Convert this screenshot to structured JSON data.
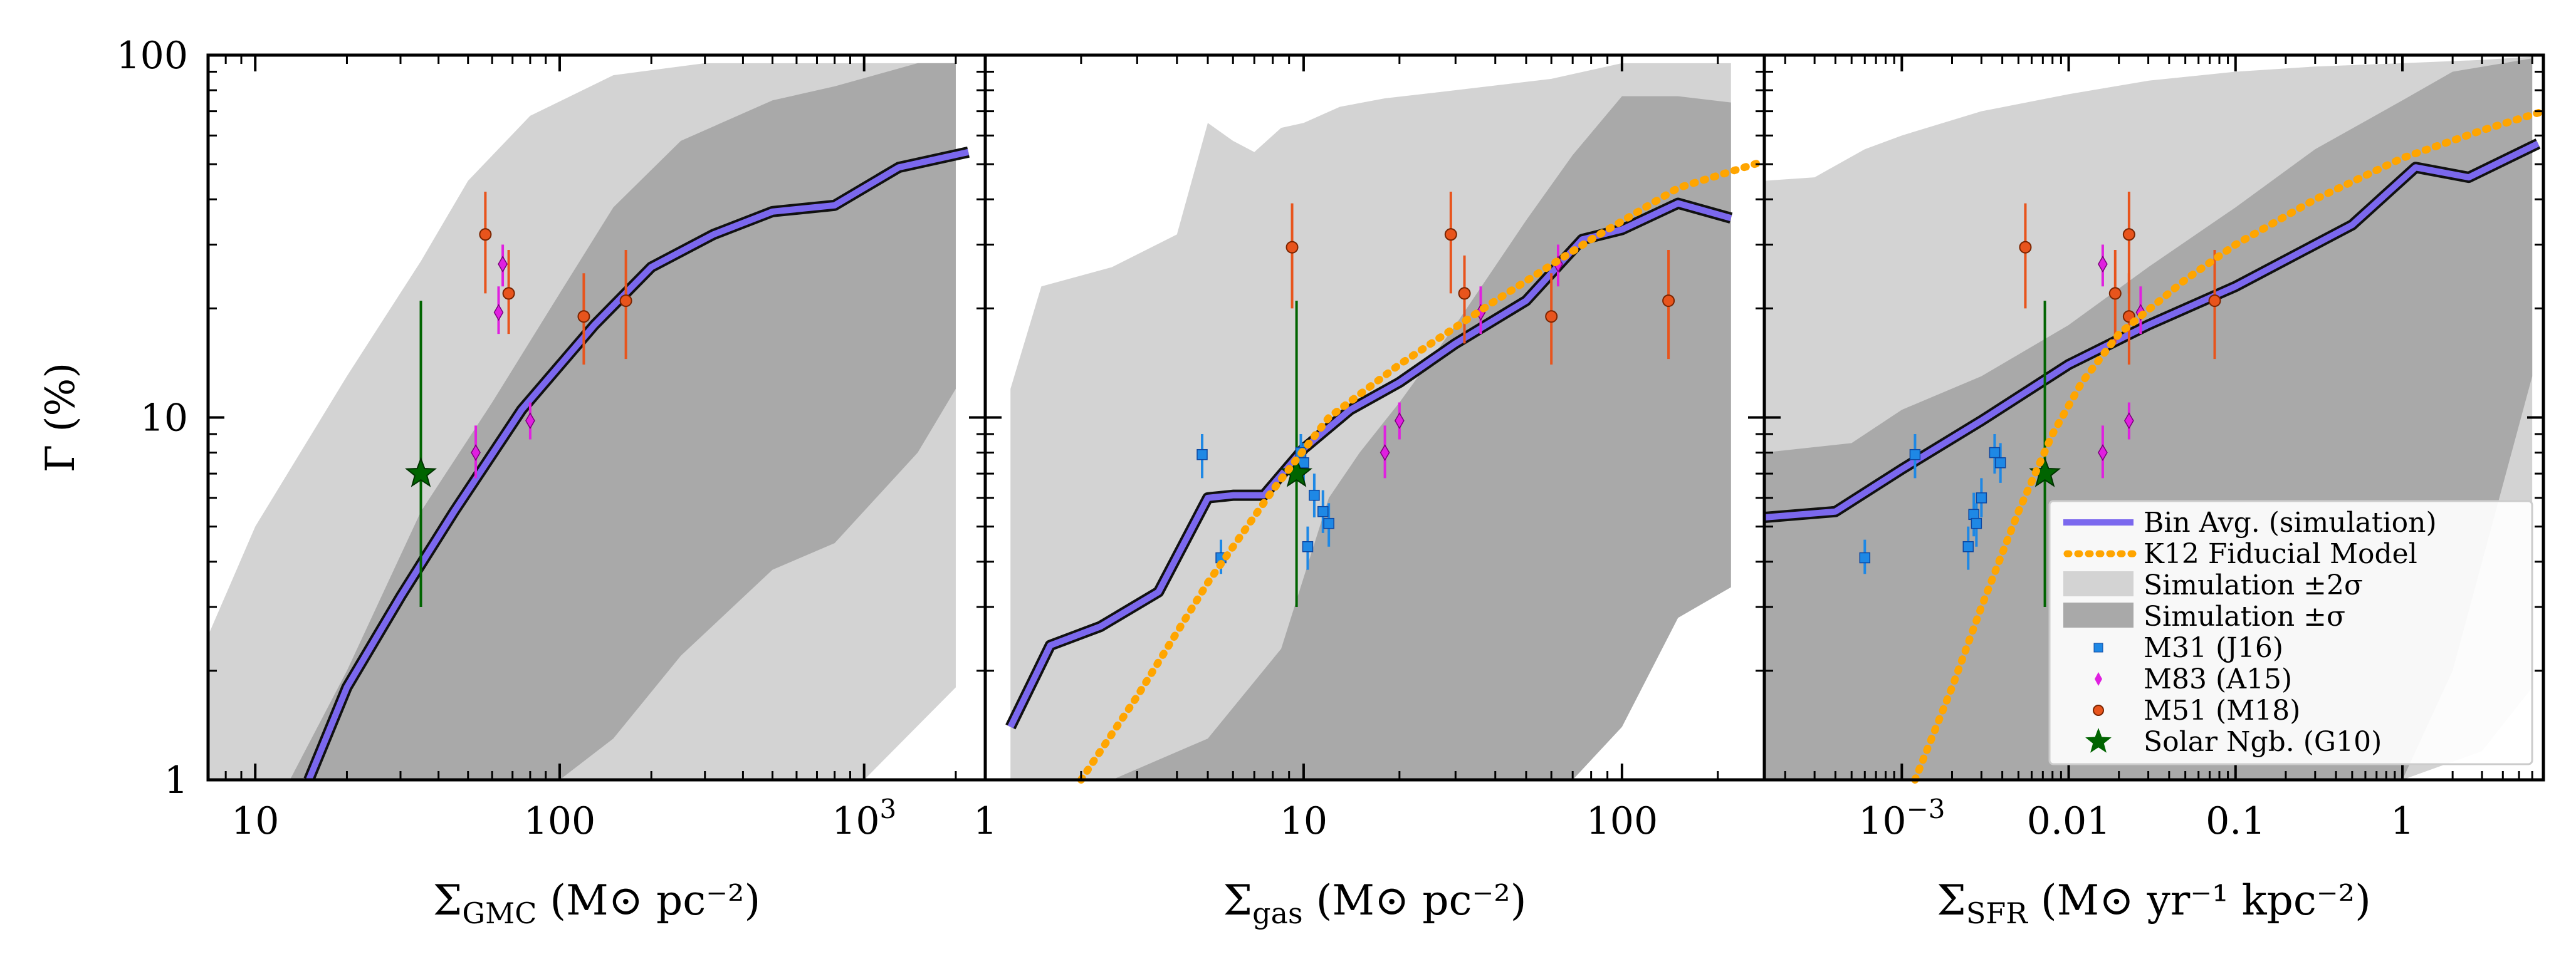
{
  "figure": {
    "ylabel": "Γ (%)",
    "y_ticks": [
      {
        "value": 1,
        "label": "1"
      },
      {
        "value": 10,
        "label": "10"
      },
      {
        "value": 100,
        "label": "100"
      }
    ],
    "legend": {
      "location": "lower-right of right panel",
      "entries": [
        {
          "key": "bin_avg",
          "label": "Bin Avg. (simulation)",
          "marker": "line"
        },
        {
          "key": "k12",
          "label": "K12 Fiducial Model",
          "marker": "dotted"
        },
        {
          "key": "sim2",
          "label": "Simulation ±2σ",
          "marker": "patch"
        },
        {
          "key": "sim1",
          "label": "Simulation ±σ",
          "marker": "patch"
        },
        {
          "key": "m31",
          "label": "M31 (J16)",
          "marker": "square"
        },
        {
          "key": "m83",
          "label": "M83 (A15)",
          "marker": "diamond"
        },
        {
          "key": "m51",
          "label": "M51 (M18)",
          "marker": "circle"
        },
        {
          "key": "solar",
          "label": "Solar Ngb. (G10)",
          "marker": "star"
        }
      ]
    }
  },
  "colors": {
    "bin_avg": "#7b68ee",
    "bin_avg_edge": "#111111",
    "k12": "#ffa500",
    "sim2": "#d3d3d3",
    "sim1": "#a9a9a9",
    "m31": "#1e88e5",
    "m83": "#e020e0",
    "m51": "#e8541c",
    "solar": "#006400"
  },
  "chart_data": [
    {
      "type": "line",
      "panel": "GMC",
      "xlabel": "Σ_GMC (M⊙ pc⁻²)",
      "xscale": "log",
      "xlim": [
        7,
        2500
      ],
      "ylim": [
        1,
        100
      ],
      "x_ticks": [
        {
          "value": 10,
          "label": "10"
        },
        {
          "value": 100,
          "label": "100"
        },
        {
          "value": 1000,
          "label": "10^3"
        }
      ],
      "band2": {
        "x": [
          7,
          10,
          20,
          35,
          50,
          80,
          150,
          300,
          600,
          1000,
          2000
        ],
        "lower": [
          1,
          1,
          1,
          1,
          1,
          1,
          1,
          1,
          1,
          1,
          1.8
        ],
        "upper": [
          2.5,
          5,
          13,
          27,
          45,
          68,
          88,
          95,
          95,
          95,
          95
        ]
      },
      "band1": {
        "x": [
          13,
          20,
          35,
          60,
          100,
          150,
          250,
          500,
          800,
          1500,
          2000
        ],
        "lower": [
          1,
          1,
          1,
          1,
          1,
          1.3,
          2.2,
          3.8,
          4.5,
          8,
          12
        ],
        "upper": [
          1,
          2,
          5.5,
          11,
          22,
          38,
          58,
          75,
          82,
          95,
          95
        ]
      },
      "bin_avg": {
        "x": [
          15,
          20,
          30,
          45,
          75,
          130,
          200,
          320,
          500,
          800,
          1300,
          2200
        ],
        "y": [
          1,
          1.8,
          3.2,
          5.5,
          10.5,
          18,
          26,
          32,
          37,
          38.5,
          49,
          54
        ]
      },
      "m51": [
        {
          "x": 57,
          "y": 32,
          "lo": 22,
          "hi": 42
        },
        {
          "x": 68,
          "y": 22,
          "lo": 17,
          "hi": 29
        },
        {
          "x": 120,
          "y": 19,
          "lo": 14,
          "hi": 25
        },
        {
          "x": 165,
          "y": 21,
          "lo": 14.5,
          "hi": 29
        }
      ],
      "m83": [
        {
          "x": 53,
          "y": 8,
          "lo": 6.8,
          "hi": 9.5
        },
        {
          "x": 63,
          "y": 19.5,
          "lo": 17,
          "hi": 23
        },
        {
          "x": 65,
          "y": 26.5,
          "lo": 23,
          "hi": 30
        },
        {
          "x": 80,
          "y": 9.8,
          "lo": 8.7,
          "hi": 11
        }
      ],
      "solar": [
        {
          "x": 35,
          "y": 7,
          "lo": 3,
          "hi": 21
        }
      ]
    },
    {
      "type": "line",
      "panel": "gas",
      "xlabel": "Σ_gas (M⊙ pc⁻²)",
      "xscale": "log",
      "xlim": [
        1,
        280
      ],
      "ylim": [
        1,
        100
      ],
      "x_ticks": [
        {
          "value": 1,
          "label": "1"
        },
        {
          "value": 10,
          "label": "10"
        },
        {
          "value": 100,
          "label": "100"
        }
      ],
      "band2": {
        "x": [
          1.2,
          1.5,
          2.5,
          4,
          5,
          6,
          7,
          8.5,
          10,
          13,
          18,
          30,
          60,
          100,
          150,
          220
        ],
        "lower": [
          1,
          1,
          1,
          1,
          1,
          1,
          1,
          1,
          1,
          1,
          1,
          1,
          1,
          1.8,
          2.8,
          3.8
        ],
        "upper": [
          12,
          23,
          26,
          32,
          65,
          58,
          54,
          63,
          65,
          72,
          76,
          80,
          86,
          95,
          95,
          95
        ]
      },
      "band1": {
        "x": [
          2.5,
          5,
          8.5,
          12,
          15,
          20,
          30,
          50,
          70,
          100,
          150,
          220
        ],
        "lower": [
          1,
          1,
          1,
          1,
          1,
          1,
          1,
          1,
          1,
          1.4,
          2.8,
          3.4
        ],
        "upper": [
          1,
          1.3,
          2.3,
          6,
          8,
          11,
          18,
          35,
          53,
          77,
          77,
          74
        ]
      },
      "bin_avg": {
        "x": [
          1.2,
          1.6,
          2.3,
          3.5,
          5,
          6,
          7.5,
          10,
          14,
          20,
          30,
          50,
          75,
          100,
          150,
          220
        ],
        "y": [
          1.4,
          2.35,
          2.65,
          3.3,
          6,
          6.1,
          6.1,
          8.2,
          10.5,
          12.5,
          16,
          21,
          31,
          33,
          39,
          35.5
        ]
      },
      "k12": {
        "x": [
          2,
          3,
          5,
          8,
          12,
          20,
          40,
          80,
          150,
          280
        ],
        "y": [
          1,
          1.7,
          3.5,
          6.3,
          10,
          14,
          21,
          31,
          43,
          51
        ]
      },
      "m31": [
        {
          "x": 4.8,
          "y": 7.9,
          "lo": 6.8,
          "hi": 9
        },
        {
          "x": 5.5,
          "y": 4.1,
          "lo": 3.7,
          "hi": 4.6
        },
        {
          "x": 9.8,
          "y": 8,
          "lo": 7,
          "hi": 9
        },
        {
          "x": 10,
          "y": 7.5,
          "lo": 6.6,
          "hi": 8.5
        },
        {
          "x": 10.3,
          "y": 4.4,
          "lo": 3.8,
          "hi": 5
        },
        {
          "x": 10.8,
          "y": 6.1,
          "lo": 5.3,
          "hi": 7
        },
        {
          "x": 11.5,
          "y": 5.5,
          "lo": 4.8,
          "hi": 6.3
        },
        {
          "x": 12,
          "y": 5.1,
          "lo": 4.4,
          "hi": 5.8
        }
      ],
      "m83": [
        {
          "x": 18,
          "y": 8,
          "lo": 6.8,
          "hi": 9.5
        },
        {
          "x": 20,
          "y": 9.8,
          "lo": 8.7,
          "hi": 11
        },
        {
          "x": 36,
          "y": 19.5,
          "lo": 17,
          "hi": 23
        },
        {
          "x": 63,
          "y": 26.5,
          "lo": 23,
          "hi": 30
        }
      ],
      "m51": [
        {
          "x": 9.2,
          "y": 29.5,
          "lo": 20,
          "hi": 39
        },
        {
          "x": 29,
          "y": 32,
          "lo": 22,
          "hi": 42
        },
        {
          "x": 32,
          "y": 22,
          "lo": 16,
          "hi": 28
        },
        {
          "x": 60,
          "y": 19,
          "lo": 14,
          "hi": 25
        },
        {
          "x": 140,
          "y": 21,
          "lo": 14.5,
          "hi": 29
        }
      ],
      "solar": [
        {
          "x": 9.5,
          "y": 7,
          "lo": 3,
          "hi": 21
        }
      ]
    },
    {
      "type": "line",
      "panel": "SFR",
      "xlabel": "Σ_SFR (M⊙ yr⁻¹ kpc⁻²)",
      "xscale": "log",
      "xlim": [
        0.00015,
        7
      ],
      "ylim": [
        1,
        100
      ],
      "x_ticks": [
        {
          "value": 0.001,
          "label": "10^-3"
        },
        {
          "value": 0.01,
          "label": "0.01"
        },
        {
          "value": 0.1,
          "label": "0.1"
        },
        {
          "value": 1,
          "label": "1"
        }
      ],
      "band2": {
        "x": [
          0.00015,
          0.0003,
          0.0006,
          0.001,
          0.003,
          0.01,
          0.03,
          0.1,
          0.3,
          1,
          3,
          6
        ],
        "lower": [
          1,
          1,
          1,
          1,
          1,
          1,
          1,
          1,
          1,
          1,
          1.2,
          1.8
        ],
        "upper": [
          45,
          46,
          55,
          60,
          70,
          78,
          85,
          90,
          93,
          95,
          97,
          99
        ]
      },
      "band1": {
        "x": [
          0.00015,
          0.0005,
          0.001,
          0.003,
          0.01,
          0.03,
          0.1,
          0.3,
          1,
          2,
          6
        ],
        "lower": [
          1,
          1,
          1,
          1,
          1,
          1,
          1,
          1,
          1,
          2,
          13
        ],
        "upper": [
          8,
          8.5,
          10.5,
          13,
          18,
          26,
          38,
          55,
          75,
          90,
          98
        ]
      },
      "bin_avg": {
        "x": [
          0.00015,
          0.0004,
          0.001,
          0.003,
          0.01,
          0.03,
          0.1,
          0.5,
          1.2,
          2.5,
          6.5
        ],
        "y": [
          5.3,
          5.5,
          7.2,
          9.8,
          14,
          18,
          23,
          34,
          49,
          46,
          57
        ]
      },
      "k12": {
        "x": [
          0.0012,
          0.002,
          0.003,
          0.005,
          0.008,
          0.012,
          0.02,
          0.05,
          0.1,
          0.3,
          1,
          3,
          7
        ],
        "y": [
          1,
          1.8,
          3,
          5.5,
          9,
          12.5,
          17,
          24,
          30,
          40,
          52,
          62,
          70
        ]
      },
      "m31": [
        {
          "x": 0.0006,
          "y": 4.1,
          "lo": 3.7,
          "hi": 4.6
        },
        {
          "x": 0.0012,
          "y": 7.9,
          "lo": 6.8,
          "hi": 9
        },
        {
          "x": 0.0025,
          "y": 4.4,
          "lo": 3.8,
          "hi": 5
        },
        {
          "x": 0.0027,
          "y": 5.4,
          "lo": 4.7,
          "hi": 6.2
        },
        {
          "x": 0.0028,
          "y": 5.1,
          "lo": 4.4,
          "hi": 5.8
        },
        {
          "x": 0.003,
          "y": 6,
          "lo": 5.3,
          "hi": 6.8
        },
        {
          "x": 0.0036,
          "y": 8,
          "lo": 7,
          "hi": 9
        },
        {
          "x": 0.0039,
          "y": 7.5,
          "lo": 6.6,
          "hi": 8.5
        }
      ],
      "m83": [
        {
          "x": 0.016,
          "y": 8,
          "lo": 6.8,
          "hi": 9.5
        },
        {
          "x": 0.016,
          "y": 26.5,
          "lo": 23,
          "hi": 30
        },
        {
          "x": 0.023,
          "y": 9.8,
          "lo": 8.7,
          "hi": 11
        },
        {
          "x": 0.027,
          "y": 19.5,
          "lo": 17,
          "hi": 23
        }
      ],
      "m51": [
        {
          "x": 0.0055,
          "y": 29.5,
          "lo": 20,
          "hi": 39
        },
        {
          "x": 0.019,
          "y": 22,
          "lo": 16,
          "hi": 29
        },
        {
          "x": 0.023,
          "y": 32,
          "lo": 22,
          "hi": 42
        },
        {
          "x": 0.023,
          "y": 19,
          "lo": 14,
          "hi": 25
        },
        {
          "x": 0.075,
          "y": 21,
          "lo": 14.5,
          "hi": 29
        }
      ],
      "solar": [
        {
          "x": 0.0072,
          "y": 7,
          "lo": 3,
          "hi": 21
        }
      ]
    }
  ]
}
